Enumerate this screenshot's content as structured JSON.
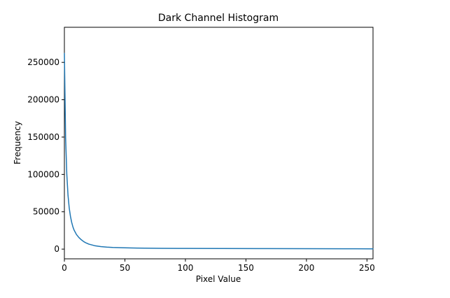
{
  "chart_data": {
    "type": "line",
    "title": "Dark Channel Histogram",
    "xlabel": "Pixel Value",
    "ylabel": "Frequency",
    "xlim": [
      0,
      255
    ],
    "ylim": [
      -13000,
      297000
    ],
    "xticks": [
      0,
      50,
      100,
      150,
      200,
      250
    ],
    "yticks": [
      0,
      50000,
      100000,
      150000,
      200000,
      250000
    ],
    "grid": false,
    "series": [
      {
        "color": "#1f77b4",
        "x": [
          0,
          1,
          2,
          3,
          4,
          5,
          6,
          7,
          8,
          10,
          12,
          14,
          16,
          18,
          20,
          25,
          30,
          35,
          40,
          50,
          60,
          80,
          100,
          130,
          160,
          200,
          230,
          255
        ],
        "values": [
          262000,
          150000,
          100000,
          72000,
          55000,
          44000,
          36000,
          30000,
          25500,
          19500,
          15500,
          12500,
          10000,
          8200,
          6800,
          4600,
          3400,
          2700,
          2200,
          1700,
          1400,
          1100,
          900,
          800,
          700,
          550,
          450,
          400
        ]
      }
    ]
  }
}
